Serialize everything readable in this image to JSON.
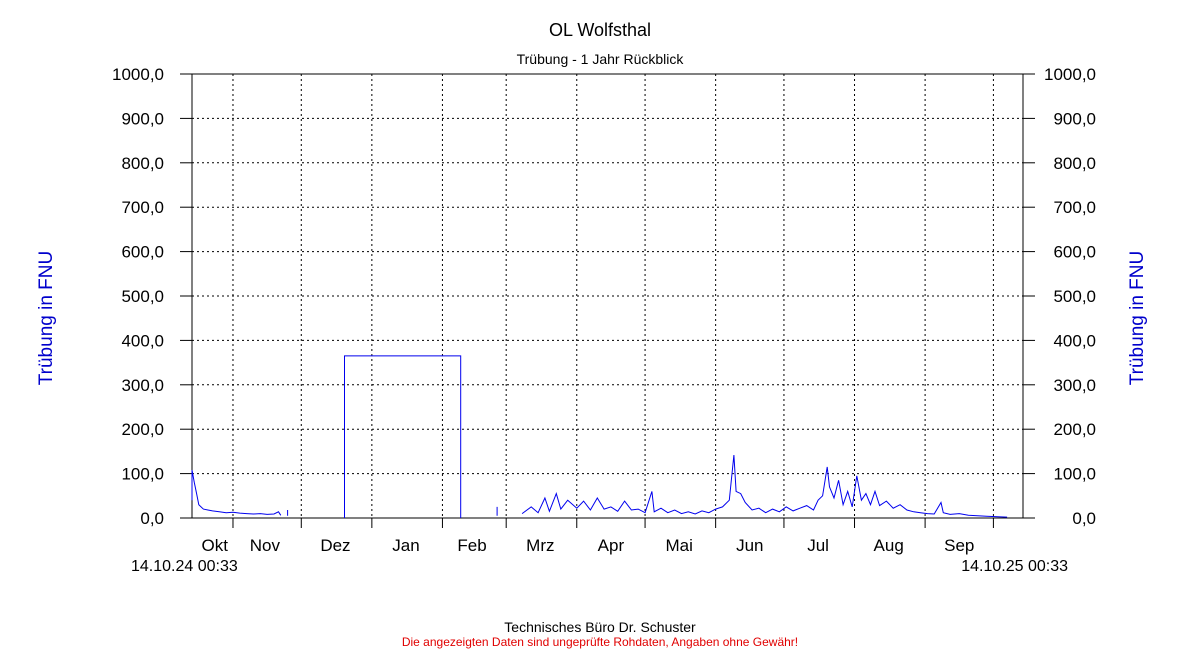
{
  "chart_data": {
    "type": "line",
    "title": "OL Wolfsthal",
    "subtitle": "Trübung - 1 Jahr Rückblick",
    "ylabel_left": "Trübung in FNU",
    "ylabel_right": "Trübung in FNU",
    "ylim": [
      0,
      1000
    ],
    "yticks": [
      0,
      100,
      200,
      300,
      400,
      500,
      600,
      700,
      800,
      900,
      1000
    ],
    "ytick_labels": [
      "0,0",
      "100,0",
      "200,0",
      "300,0",
      "400,0",
      "500,0",
      "600,0",
      "700,0",
      "800,0",
      "900,0",
      "1000,0"
    ],
    "x_start_label": "14.10.24 00:33",
    "x_end_label": "14.10.25 00:33",
    "x_range": [
      "2024-10-14",
      "2025-10-14"
    ],
    "month_labels": [
      {
        "label": "Okt",
        "date": "2024-10-24"
      },
      {
        "label": "Nov",
        "date": "2024-11-15"
      },
      {
        "label": "Dez",
        "date": "2024-12-16"
      },
      {
        "label": "Jan",
        "date": "2025-01-16"
      },
      {
        "label": "Feb",
        "date": "2025-02-14"
      },
      {
        "label": "Mrz",
        "date": "2025-03-16"
      },
      {
        "label": "Apr",
        "date": "2025-04-16"
      },
      {
        "label": "Mai",
        "date": "2025-05-16"
      },
      {
        "label": "Jun",
        "date": "2025-06-16"
      },
      {
        "label": "Jul",
        "date": "2025-07-16"
      },
      {
        "label": "Aug",
        "date": "2025-08-16"
      },
      {
        "label": "Sep",
        "date": "2025-09-16"
      }
    ],
    "month_gridlines": [
      "2024-11-01",
      "2024-12-01",
      "2025-01-01",
      "2025-02-01",
      "2025-03-01",
      "2025-04-01",
      "2025-05-01",
      "2025-06-01",
      "2025-07-01",
      "2025-08-01",
      "2025-09-01",
      "2025-10-01"
    ],
    "grid": true,
    "series": [
      {
        "color": "#0000ee",
        "points": [
          [
            "2024-10-14",
            40
          ],
          [
            "2024-10-14",
            108
          ],
          [
            "2024-10-15",
            80
          ],
          [
            "2024-10-16",
            55
          ],
          [
            "2024-10-17",
            30
          ],
          [
            "2024-10-19",
            20
          ],
          [
            "2024-10-21",
            18
          ],
          [
            "2024-10-23",
            16
          ],
          [
            "2024-10-26",
            14
          ],
          [
            "2024-10-29",
            12
          ],
          [
            "2024-11-01",
            13
          ],
          [
            "2024-11-04",
            11
          ],
          [
            "2024-11-07",
            10
          ],
          [
            "2024-11-10",
            9
          ],
          [
            "2024-11-13",
            10
          ],
          [
            "2024-11-16",
            8
          ],
          [
            "2024-11-19",
            9
          ],
          [
            "2024-11-21",
            14
          ],
          [
            "2024-11-22",
            6
          ],
          [
            "2024-11-24",
            null
          ],
          [
            "2024-11-25",
            18
          ],
          [
            "2024-11-25",
            5
          ],
          [
            "2024-11-26",
            null
          ],
          [
            "2024-12-20",
            0
          ],
          [
            "2024-12-20",
            365
          ],
          [
            "2025-02-09",
            365
          ],
          [
            "2025-02-09",
            0
          ],
          [
            "2025-02-10",
            null
          ],
          [
            "2025-02-25",
            25
          ],
          [
            "2025-02-25",
            5
          ],
          [
            "2025-02-26",
            null
          ],
          [
            "2025-03-08",
            10
          ],
          [
            "2025-03-12",
            25
          ],
          [
            "2025-03-15",
            12
          ],
          [
            "2025-03-18",
            45
          ],
          [
            "2025-03-20",
            15
          ],
          [
            "2025-03-23",
            55
          ],
          [
            "2025-03-25",
            20
          ],
          [
            "2025-03-28",
            40
          ],
          [
            "2025-04-01",
            22
          ],
          [
            "2025-04-04",
            38
          ],
          [
            "2025-04-07",
            18
          ],
          [
            "2025-04-10",
            45
          ],
          [
            "2025-04-13",
            20
          ],
          [
            "2025-04-16",
            25
          ],
          [
            "2025-04-19",
            15
          ],
          [
            "2025-04-22",
            38
          ],
          [
            "2025-04-25",
            18
          ],
          [
            "2025-04-28",
            20
          ],
          [
            "2025-05-01",
            12
          ],
          [
            "2025-05-04",
            60
          ],
          [
            "2025-05-05",
            14
          ],
          [
            "2025-05-08",
            22
          ],
          [
            "2025-05-11",
            12
          ],
          [
            "2025-05-14",
            18
          ],
          [
            "2025-05-17",
            10
          ],
          [
            "2025-05-20",
            14
          ],
          [
            "2025-05-23",
            9
          ],
          [
            "2025-05-26",
            16
          ],
          [
            "2025-05-29",
            12
          ],
          [
            "2025-06-01",
            20
          ],
          [
            "2025-06-04",
            25
          ],
          [
            "2025-06-07",
            40
          ],
          [
            "2025-06-09",
            142
          ],
          [
            "2025-06-10",
            60
          ],
          [
            "2025-06-12",
            55
          ],
          [
            "2025-06-14",
            35
          ],
          [
            "2025-06-17",
            18
          ],
          [
            "2025-06-20",
            22
          ],
          [
            "2025-06-23",
            12
          ],
          [
            "2025-06-26",
            20
          ],
          [
            "2025-06-29",
            14
          ],
          [
            "2025-07-02",
            25
          ],
          [
            "2025-07-05",
            16
          ],
          [
            "2025-07-08",
            22
          ],
          [
            "2025-07-11",
            28
          ],
          [
            "2025-07-14",
            18
          ],
          [
            "2025-07-16",
            40
          ],
          [
            "2025-07-18",
            50
          ],
          [
            "2025-07-20",
            115
          ],
          [
            "2025-07-21",
            70
          ],
          [
            "2025-07-23",
            45
          ],
          [
            "2025-07-25",
            85
          ],
          [
            "2025-07-27",
            30
          ],
          [
            "2025-07-29",
            60
          ],
          [
            "2025-07-31",
            25
          ],
          [
            "2025-08-02",
            95
          ],
          [
            "2025-08-04",
            40
          ],
          [
            "2025-08-06",
            55
          ],
          [
            "2025-08-08",
            30
          ],
          [
            "2025-08-10",
            60
          ],
          [
            "2025-08-12",
            28
          ],
          [
            "2025-08-15",
            38
          ],
          [
            "2025-08-18",
            22
          ],
          [
            "2025-08-21",
            30
          ],
          [
            "2025-08-24",
            18
          ],
          [
            "2025-08-27",
            14
          ],
          [
            "2025-08-30",
            12
          ],
          [
            "2025-09-02",
            10
          ],
          [
            "2025-09-05",
            9
          ],
          [
            "2025-09-08",
            35
          ],
          [
            "2025-09-09",
            12
          ],
          [
            "2025-09-12",
            8
          ],
          [
            "2025-09-16",
            10
          ],
          [
            "2025-09-20",
            6
          ],
          [
            "2025-09-24",
            5
          ],
          [
            "2025-09-28",
            4
          ],
          [
            "2025-10-03",
            3
          ],
          [
            "2025-10-07",
            2
          ]
        ]
      }
    ]
  },
  "footer": {
    "company": "Technisches Büro Dr. Schuster",
    "disclaimer": "Die angezeigten Daten sind ungeprüfte Rohdaten, Angaben ohne Gewähr!"
  }
}
